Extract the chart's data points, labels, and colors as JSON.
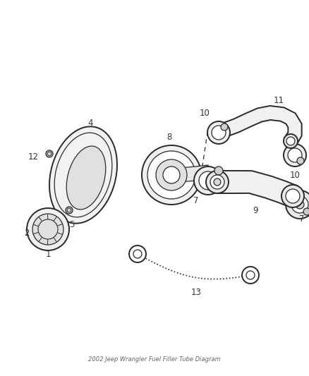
{
  "title": "2002 Jeep Wrangler Fuel Filler Tube Diagram",
  "bg_color": "#ffffff",
  "line_color": "#2a2a2a",
  "label_color": "#333333",
  "fig_width": 4.38,
  "fig_height": 5.33,
  "dpi": 100
}
